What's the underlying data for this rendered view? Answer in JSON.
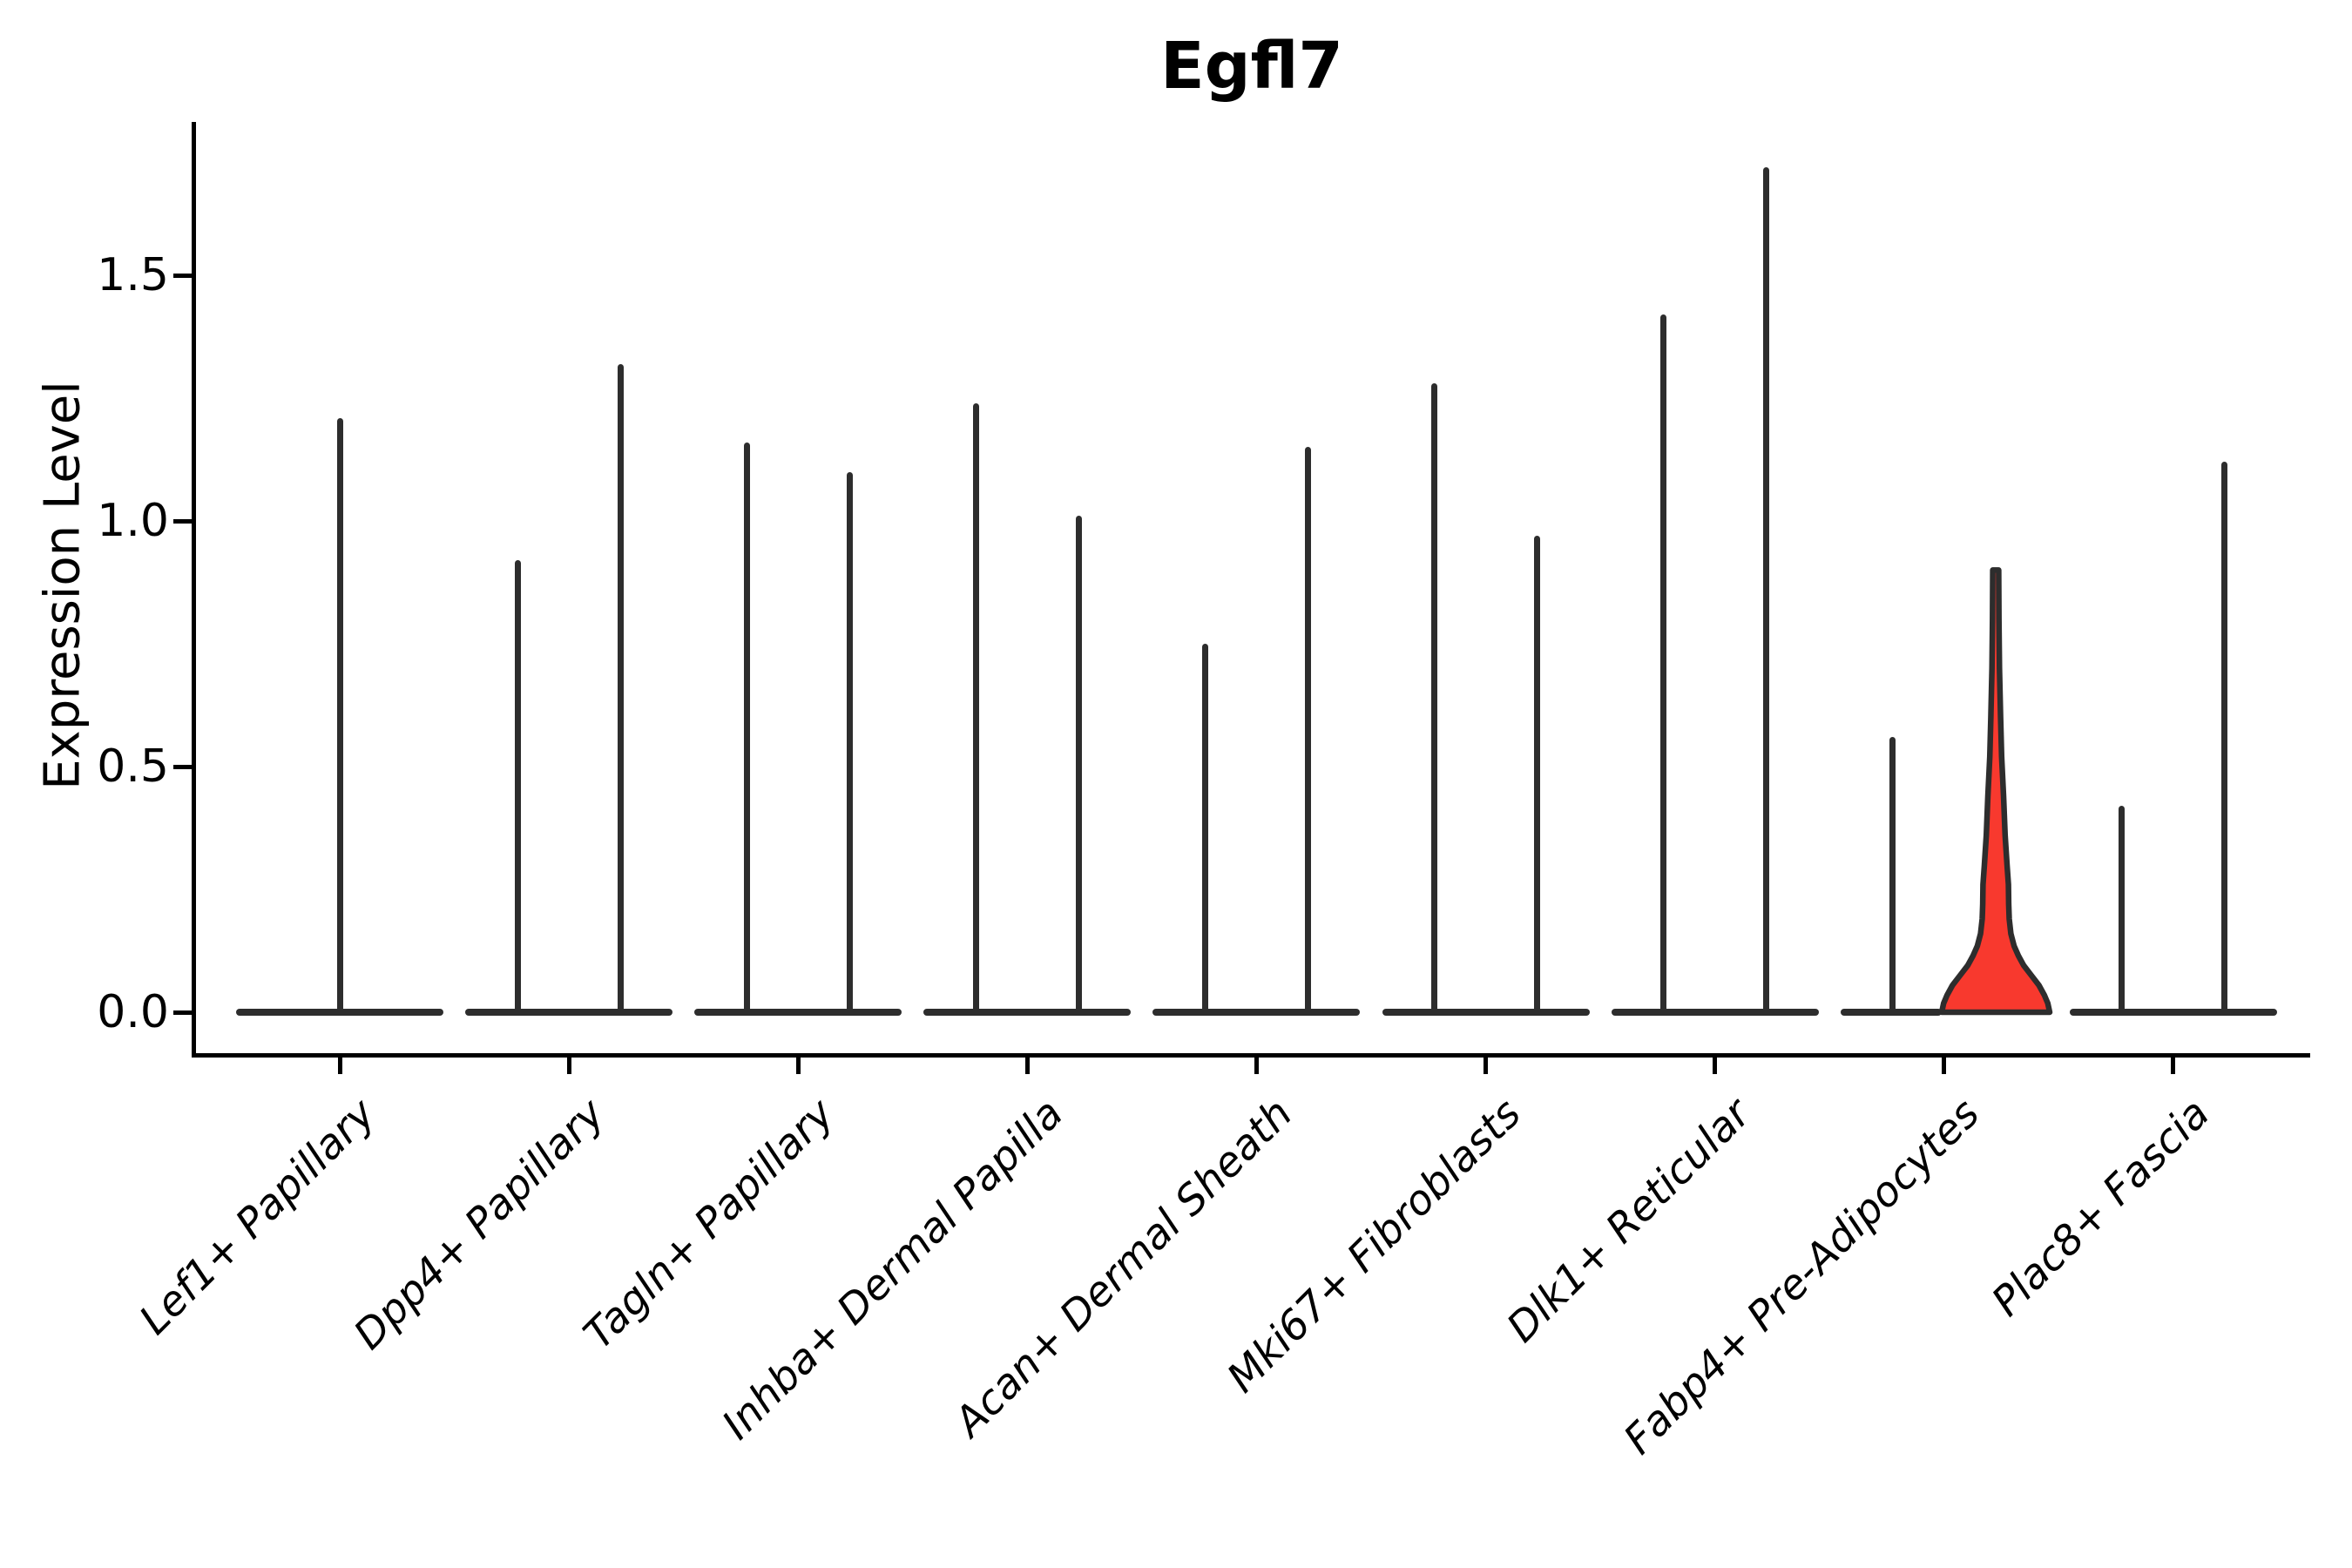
{
  "title": "Egfl7",
  "y_axis": {
    "label": "Expression Level",
    "tick_labels": [
      "0.0",
      "0.5",
      "1.0",
      "1.5"
    ],
    "tick_values": [
      0.0,
      0.5,
      1.0,
      1.5
    ]
  },
  "x_axis": {
    "categories": [
      "Lef1+ Papillary",
      "Dpp4+ Papillary",
      "Tagln+ Papillary",
      "Inhba+ Dermal Papilla",
      "Acan+ Dermal Sheath",
      "Mki67+ Fibroblasts",
      "Dlk1+ Reticular",
      "Fabp4+ Pre-Adipocytes",
      "Plac8+ Fascia"
    ],
    "label_rotation_deg": 45
  },
  "colors": {
    "highlight_fill": "#f8392e",
    "violin_outline": "#2d2d2d",
    "axis": "#000000"
  },
  "chart_data": {
    "type": "violin",
    "title": "Egfl7",
    "ylabel": "Expression Level",
    "ylim": [
      0,
      1.8
    ],
    "yticks": [
      0.0,
      0.5,
      1.0,
      1.5
    ],
    "grid": false,
    "legend_position": "none",
    "categories": [
      "Lef1+ Papillary",
      "Dpp4+ Papillary",
      "Tagln+ Papillary",
      "Inhba+ Dermal Papilla",
      "Acan+ Dermal Sheath",
      "Mki67+ Fibroblasts",
      "Dlk1+ Reticular",
      "Fabp4+ Pre-Adipocytes",
      "Plac8+ Fascia"
    ],
    "note": "Zero-inflated expression: every violin is a flat pancake at 0 with a thin spike to its maximum; only the highlighted violin shows visible density mass above 0.",
    "violins": [
      {
        "category": "Lef1+ Papillary",
        "group_violins": [
          {
            "max_expression": 1.21,
            "highlighted": false
          }
        ]
      },
      {
        "category": "Dpp4+ Papillary",
        "group_violins": [
          {
            "max_expression": 0.92,
            "highlighted": false
          },
          {
            "max_expression": 1.32,
            "highlighted": false
          }
        ]
      },
      {
        "category": "Tagln+ Papillary",
        "group_violins": [
          {
            "max_expression": 1.16,
            "highlighted": false
          },
          {
            "max_expression": 1.1,
            "highlighted": false
          }
        ]
      },
      {
        "category": "Inhba+ Dermal Papilla",
        "group_violins": [
          {
            "max_expression": 1.24,
            "highlighted": false
          },
          {
            "max_expression": 1.01,
            "highlighted": false
          }
        ]
      },
      {
        "category": "Acan+ Dermal Sheath",
        "group_violins": [
          {
            "max_expression": 0.75,
            "highlighted": false
          },
          {
            "max_expression": 1.15,
            "highlighted": false
          }
        ]
      },
      {
        "category": "Mki67+ Fibroblasts",
        "group_violins": [
          {
            "max_expression": 1.28,
            "highlighted": false
          },
          {
            "max_expression": 0.97,
            "highlighted": false
          }
        ]
      },
      {
        "category": "Dlk1+ Reticular",
        "group_violins": [
          {
            "max_expression": 1.42,
            "highlighted": false
          },
          {
            "max_expression": 1.72,
            "highlighted": false
          }
        ]
      },
      {
        "category": "Fabp4+ Pre-Adipocytes",
        "group_violins": [
          {
            "max_expression": 0.56,
            "highlighted": false
          },
          {
            "max_expression": 0.9,
            "highlighted": true
          }
        ]
      },
      {
        "category": "Plac8+ Fascia",
        "group_violins": [
          {
            "max_expression": 0.42,
            "highlighted": false
          },
          {
            "max_expression": 1.12,
            "highlighted": false
          }
        ]
      }
    ],
    "highlighted_violin_profile": [
      [
        0.9,
        0.055
      ],
      [
        0.8,
        0.06
      ],
      [
        0.7,
        0.07
      ],
      [
        0.6,
        0.09
      ],
      [
        0.52,
        0.11
      ],
      [
        0.44,
        0.145
      ],
      [
        0.36,
        0.175
      ],
      [
        0.3,
        0.21
      ],
      [
        0.26,
        0.235
      ],
      [
        0.22,
        0.24
      ],
      [
        0.19,
        0.25
      ],
      [
        0.16,
        0.28
      ],
      [
        0.135,
        0.34
      ],
      [
        0.115,
        0.42
      ],
      [
        0.095,
        0.52
      ],
      [
        0.075,
        0.66
      ],
      [
        0.055,
        0.8
      ],
      [
        0.035,
        0.9
      ],
      [
        0.018,
        0.965
      ],
      [
        0.0,
        1.0
      ]
    ]
  }
}
